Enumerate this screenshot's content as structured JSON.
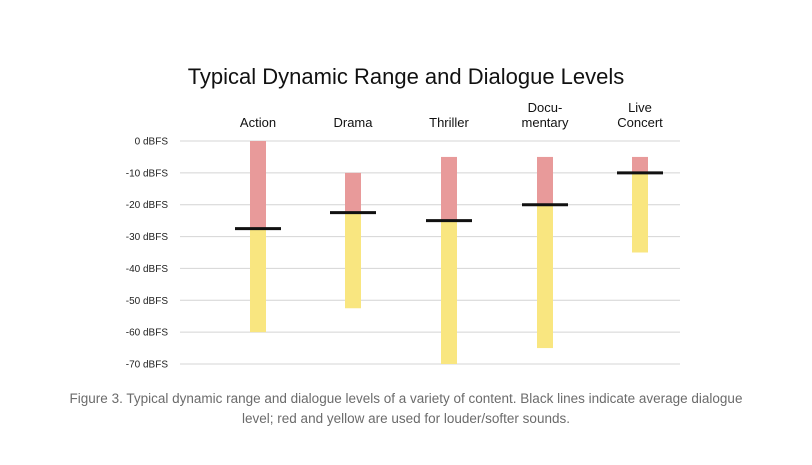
{
  "chart_data": {
    "type": "bar",
    "title": "Typical Dynamic Range and Dialogue Levels",
    "ylabel": "",
    "xlabel": "",
    "ylim": [
      -70,
      0
    ],
    "yticks": [
      0,
      -10,
      -20,
      -30,
      -40,
      -50,
      -60,
      -70
    ],
    "ytick_labels": [
      "0 dBFS",
      "-10 dBFS",
      "-20 dBFS",
      "-30 dBFS",
      "-40 dBFS",
      "-50 dBFS",
      "-60 dBFS",
      "-70 dBFS"
    ],
    "grid": true,
    "colors": {
      "louder": "#e89a9a",
      "softer": "#f9e680",
      "dialogue": "#111111",
      "grid": "#d4d4d4"
    },
    "categories": [
      {
        "label_lines": [
          "Action"
        ],
        "max": 0,
        "dialogue": -27.5,
        "min": -60
      },
      {
        "label_lines": [
          "Drama"
        ],
        "max": -10,
        "dialogue": -22.5,
        "min": -52.5
      },
      {
        "label_lines": [
          "Thriller"
        ],
        "max": -5,
        "dialogue": -25,
        "min": -70
      },
      {
        "label_lines": [
          "Docu-",
          "mentary"
        ],
        "max": -5,
        "dialogue": -20,
        "min": -65
      },
      {
        "label_lines": [
          "Live",
          "Concert"
        ],
        "max": -5,
        "dialogue": -10,
        "min": -35
      }
    ]
  },
  "caption": "Figure 3. Typical dynamic range and dialogue levels of a variety of content. Black lines indicate average dialogue level; red and yellow are used for louder/softer sounds."
}
